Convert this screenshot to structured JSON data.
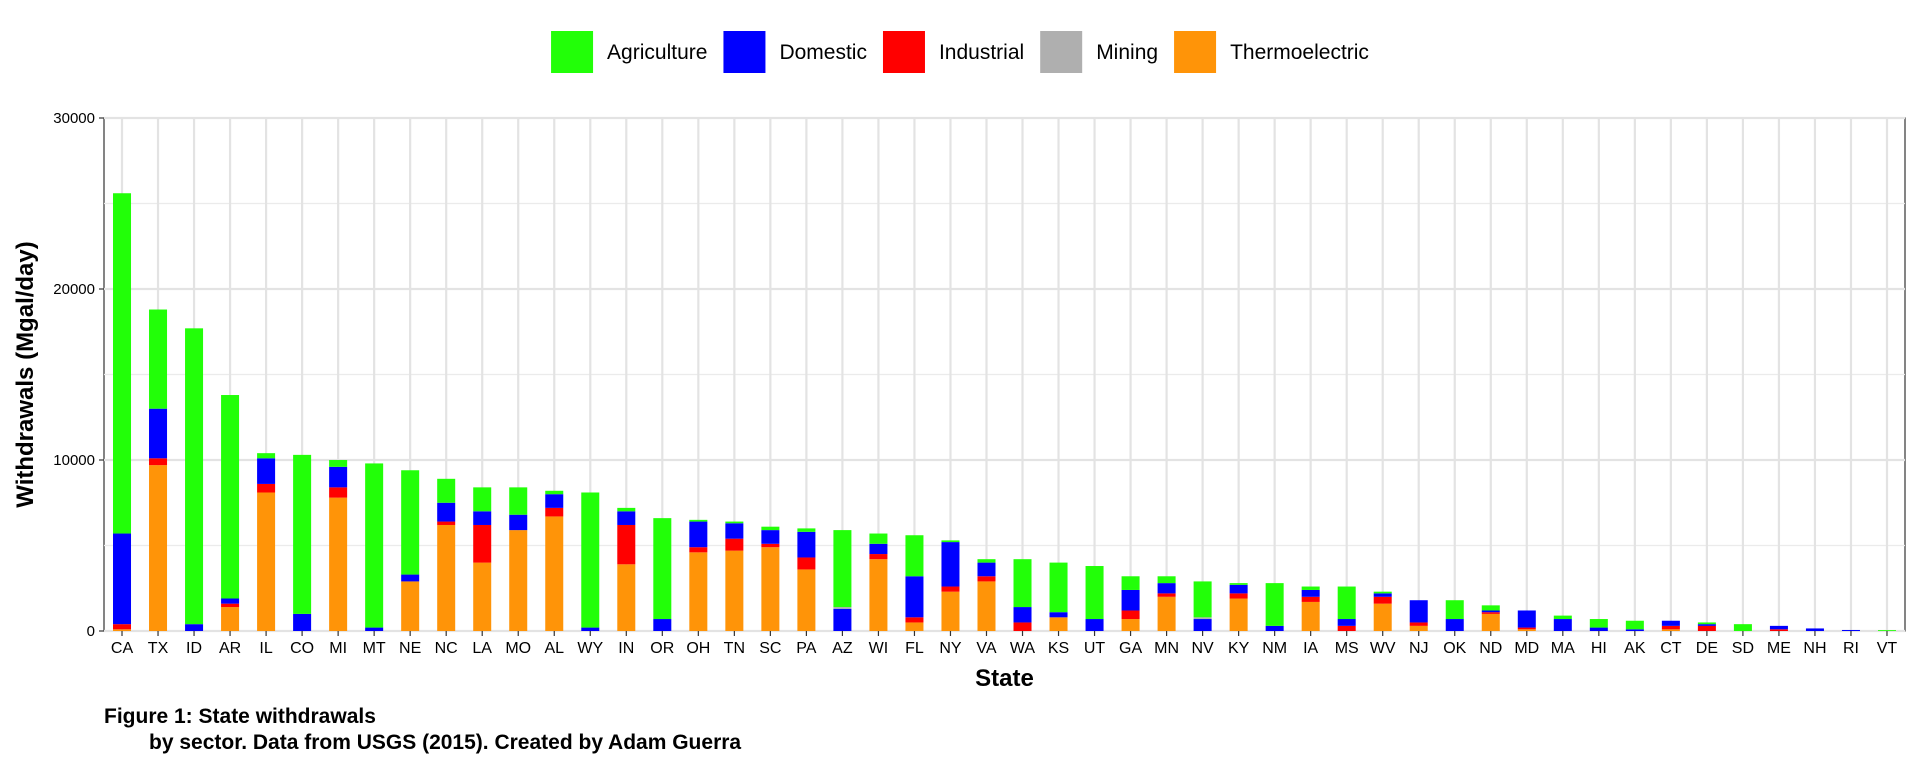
{
  "chart_data": {
    "type": "bar",
    "stacked": true,
    "xlabel": "State",
    "ylabel": "Withdrawals (Mgal/day)",
    "ylim": [
      0,
      30000
    ],
    "yticks": [
      0,
      10000,
      20000,
      30000
    ],
    "ytick_labels": [
      "0",
      "10000",
      "20000",
      "30000"
    ],
    "grid": true,
    "legend_position": "top",
    "categories": [
      "CA",
      "TX",
      "ID",
      "AR",
      "IL",
      "CO",
      "MI",
      "MT",
      "NE",
      "NC",
      "LA",
      "MO",
      "AL",
      "WY",
      "IN",
      "OR",
      "OH",
      "TN",
      "SC",
      "PA",
      "AZ",
      "WI",
      "FL",
      "NY",
      "VA",
      "WA",
      "KS",
      "UT",
      "GA",
      "MN",
      "NV",
      "KY",
      "NM",
      "IA",
      "MS",
      "WV",
      "NJ",
      "OK",
      "ND",
      "MD",
      "MA",
      "HI",
      "AK",
      "CT",
      "DE",
      "SD",
      "ME",
      "NH",
      "RI",
      "VT"
    ],
    "series": [
      {
        "name": "Thermoelectric",
        "color": "#FF9408",
        "values": [
          100,
          9700,
          0,
          1400,
          8100,
          0,
          7800,
          0,
          2900,
          6200,
          4000,
          5900,
          6700,
          0,
          3900,
          0,
          4600,
          4700,
          4900,
          3600,
          0,
          4200,
          500,
          2300,
          2900,
          0,
          800,
          0,
          700,
          2000,
          0,
          1900,
          0,
          1700,
          0,
          1600,
          300,
          0,
          1000,
          100,
          0,
          0,
          0,
          100,
          0,
          0,
          0,
          0,
          0,
          0
        ]
      },
      {
        "name": "Industrial",
        "color": "#FF0000",
        "values": [
          300,
          400,
          0,
          200,
          500,
          0,
          600,
          0,
          0,
          200,
          2200,
          0,
          500,
          0,
          2300,
          0,
          300,
          700,
          200,
          700,
          0,
          300,
          300,
          300,
          300,
          500,
          0,
          0,
          500,
          200,
          0,
          300,
          0,
          300,
          300,
          400,
          200,
          0,
          100,
          100,
          0,
          0,
          0,
          200,
          300,
          0,
          100,
          0,
          0,
          0
        ]
      },
      {
        "name": "Domestic",
        "color": "#0000FF",
        "values": [
          5300,
          2900,
          400,
          300,
          1500,
          1000,
          1200,
          200,
          400,
          1100,
          800,
          900,
          800,
          200,
          800,
          700,
          1500,
          900,
          800,
          1500,
          1300,
          600,
          2400,
          2600,
          800,
          900,
          300,
          700,
          1200,
          600,
          700,
          500,
          300,
          400,
          400,
          200,
          1300,
          700,
          100,
          1000,
          700,
          200,
          100,
          300,
          100,
          0,
          200,
          150,
          60,
          0
        ]
      },
      {
        "name": "Mining",
        "color": "#AFAFAF",
        "values": [
          0,
          0,
          0,
          0,
          0,
          0,
          0,
          0,
          0,
          0,
          0,
          0,
          0,
          0,
          0,
          0,
          0,
          0,
          0,
          0,
          100,
          0,
          0,
          0,
          0,
          0,
          0,
          0,
          0,
          0,
          100,
          0,
          0,
          0,
          0,
          0,
          0,
          0,
          0,
          0,
          0,
          0,
          0,
          0,
          0,
          0,
          0,
          0,
          0,
          0
        ]
      },
      {
        "name": "Agriculture",
        "color": "#22FF08",
        "values": [
          19900,
          5800,
          17300,
          11900,
          300,
          9300,
          400,
          9600,
          6100,
          1400,
          1400,
          1600,
          200,
          7900,
          200,
          5900,
          100,
          100,
          200,
          200,
          4500,
          600,
          2400,
          100,
          200,
          2800,
          2900,
          3100,
          800,
          400,
          2100,
          100,
          2500,
          200,
          1900,
          100,
          0,
          1100,
          300,
          0,
          200,
          500,
          500,
          0,
          100,
          400,
          0,
          0,
          0,
          50
        ]
      }
    ]
  },
  "caption": {
    "line1": "Figure 1: State withdrawals",
    "line2": "by sector. Data from USGS (2015). Created by Adam Guerra"
  }
}
